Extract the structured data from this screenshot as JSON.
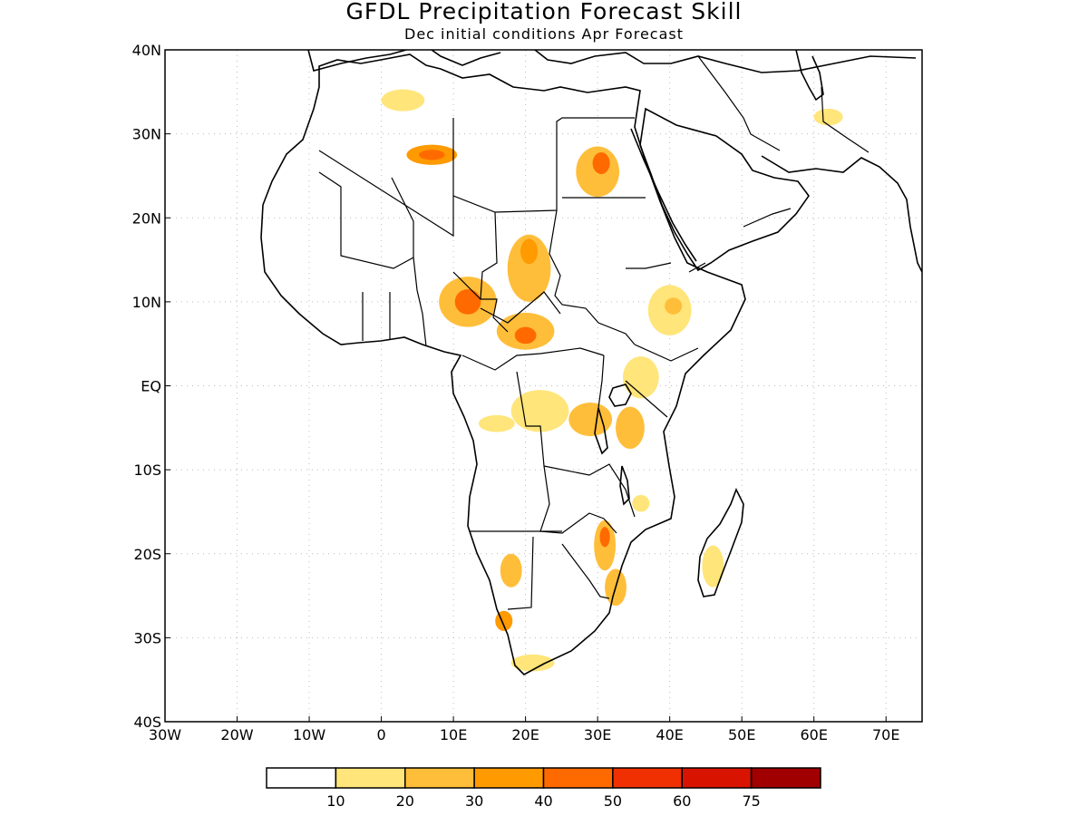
{
  "title": "GFDL Precipitation Forecast Skill",
  "subtitle": "Dec initial conditions  Apr Forecast",
  "map": {
    "lon_range": [
      -30,
      75
    ],
    "lat_range": [
      -40,
      40
    ],
    "grid": "dotted",
    "x_ticks": [
      {
        "lon": -30,
        "label": "30W"
      },
      {
        "lon": -20,
        "label": "20W"
      },
      {
        "lon": -10,
        "label": "10W"
      },
      {
        "lon": 0,
        "label": "0"
      },
      {
        "lon": 10,
        "label": "10E"
      },
      {
        "lon": 20,
        "label": "20E"
      },
      {
        "lon": 30,
        "label": "30E"
      },
      {
        "lon": 40,
        "label": "40E"
      },
      {
        "lon": 50,
        "label": "50E"
      },
      {
        "lon": 60,
        "label": "60E"
      },
      {
        "lon": 70,
        "label": "70E"
      }
    ],
    "y_ticks": [
      {
        "lat": 40,
        "label": "40N"
      },
      {
        "lat": 30,
        "label": "30N"
      },
      {
        "lat": 20,
        "label": "20N"
      },
      {
        "lat": 10,
        "label": "10N"
      },
      {
        "lat": 0,
        "label": "EQ"
      },
      {
        "lat": -10,
        "label": "10S"
      },
      {
        "lat": -20,
        "label": "20S"
      },
      {
        "lat": -30,
        "label": "30S"
      },
      {
        "lat": -40,
        "label": "40S"
      }
    ]
  },
  "colorbar": {
    "colors": [
      "#ffffff",
      "#ffe57a",
      "#ffbe3a",
      "#ff9a00",
      "#ff6a00",
      "#f03000",
      "#d81400",
      "#a00000"
    ],
    "labels": [
      "10",
      "20",
      "30",
      "40",
      "50",
      "60",
      "75"
    ]
  },
  "skill_regions": [
    {
      "lon": 7,
      "lat": 27.5,
      "rx": 3.5,
      "ry": 1.2,
      "level": 3
    },
    {
      "lon": 7,
      "lat": 27.5,
      "rx": 1.8,
      "ry": 0.6,
      "level": 4
    },
    {
      "lon": 3,
      "lat": 34,
      "rx": 3,
      "ry": 1.3,
      "level": 1
    },
    {
      "lon": 30,
      "lat": 25.5,
      "rx": 3,
      "ry": 3,
      "level": 2
    },
    {
      "lon": 30.5,
      "lat": 26.5,
      "rx": 1.2,
      "ry": 1.3,
      "level": 4
    },
    {
      "lon": 12,
      "lat": 10,
      "rx": 4,
      "ry": 3,
      "level": 2
    },
    {
      "lon": 12,
      "lat": 10,
      "rx": 1.8,
      "ry": 1.5,
      "level": 4
    },
    {
      "lon": 20.5,
      "lat": 14,
      "rx": 3,
      "ry": 4,
      "level": 2
    },
    {
      "lon": 20.5,
      "lat": 16,
      "rx": 1.2,
      "ry": 1.5,
      "level": 3
    },
    {
      "lon": 20,
      "lat": 6.5,
      "rx": 4,
      "ry": 2.2,
      "level": 2
    },
    {
      "lon": 20,
      "lat": 6,
      "rx": 1.5,
      "ry": 1,
      "level": 4
    },
    {
      "lon": 40,
      "lat": 9,
      "rx": 3,
      "ry": 3,
      "level": 1
    },
    {
      "lon": 40.5,
      "lat": 9.5,
      "rx": 1.2,
      "ry": 1,
      "level": 2
    },
    {
      "lon": 36,
      "lat": 1,
      "rx": 2.5,
      "ry": 2.5,
      "level": 1
    },
    {
      "lon": 22,
      "lat": -3,
      "rx": 4,
      "ry": 2.5,
      "level": 1
    },
    {
      "lon": 29,
      "lat": -4,
      "rx": 3,
      "ry": 2,
      "level": 2
    },
    {
      "lon": 34.5,
      "lat": -5,
      "rx": 2,
      "ry": 2.5,
      "level": 2
    },
    {
      "lon": 16,
      "lat": -4.5,
      "rx": 2.5,
      "ry": 1,
      "level": 1
    },
    {
      "lon": 31,
      "lat": -19,
      "rx": 1.5,
      "ry": 3,
      "level": 2
    },
    {
      "lon": 31,
      "lat": -18,
      "rx": 0.7,
      "ry": 1.2,
      "level": 4
    },
    {
      "lon": 32.5,
      "lat": -24,
      "rx": 1.5,
      "ry": 2.2,
      "level": 2
    },
    {
      "lon": 18,
      "lat": -22,
      "rx": 1.5,
      "ry": 2,
      "level": 2
    },
    {
      "lon": 17,
      "lat": -28,
      "rx": 1.2,
      "ry": 1.2,
      "level": 3
    },
    {
      "lon": 21,
      "lat": -33,
      "rx": 3,
      "ry": 1,
      "level": 1
    },
    {
      "lon": 46,
      "lat": -21.5,
      "rx": 1.5,
      "ry": 2.5,
      "level": 1
    },
    {
      "lon": 36,
      "lat": -14,
      "rx": 1.2,
      "ry": 1,
      "level": 1
    },
    {
      "lon": 62,
      "lat": 32,
      "rx": 2,
      "ry": 1,
      "level": 1
    }
  ]
}
